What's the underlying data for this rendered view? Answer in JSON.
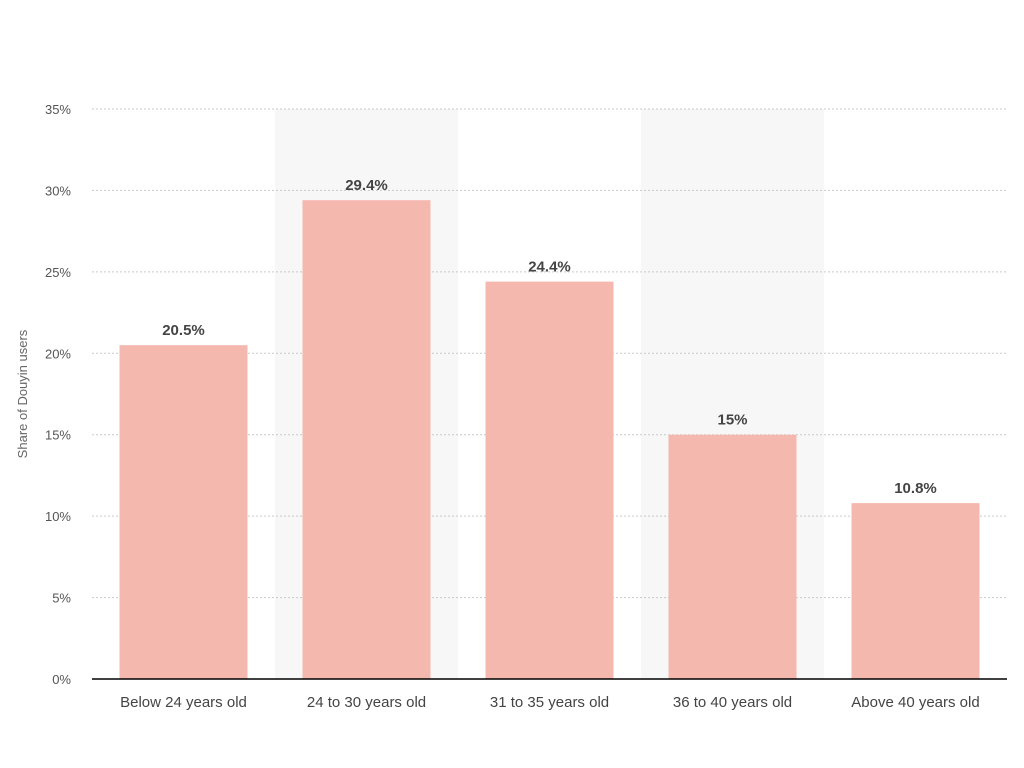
{
  "chart_data": {
    "type": "bar",
    "title": "",
    "xlabel": "",
    "ylabel": "Share of Douyin users",
    "categories": [
      "Below 24 years old",
      "24 to 30 years old",
      "31 to 35 years old",
      "36 to 40 years old",
      "Above 40 years old"
    ],
    "values": [
      20.5,
      29.4,
      24.4,
      15,
      10.8
    ],
    "data_labels": [
      "20.5%",
      "29.4%",
      "24.4%",
      "15%",
      "10.8%"
    ],
    "ylim": [
      0,
      35
    ],
    "yticks": [
      0,
      5,
      10,
      15,
      20,
      25,
      30,
      35
    ],
    "ytick_labels": [
      "0%",
      "5%",
      "10%",
      "15%",
      "20%",
      "25%",
      "30%",
      "35%"
    ],
    "grid": true,
    "legend": "none",
    "bar_color": "#f5b8ae",
    "band_color": "#f7f7f8",
    "grid_color": "#c9c9c9",
    "axis_color": "#000000"
  }
}
